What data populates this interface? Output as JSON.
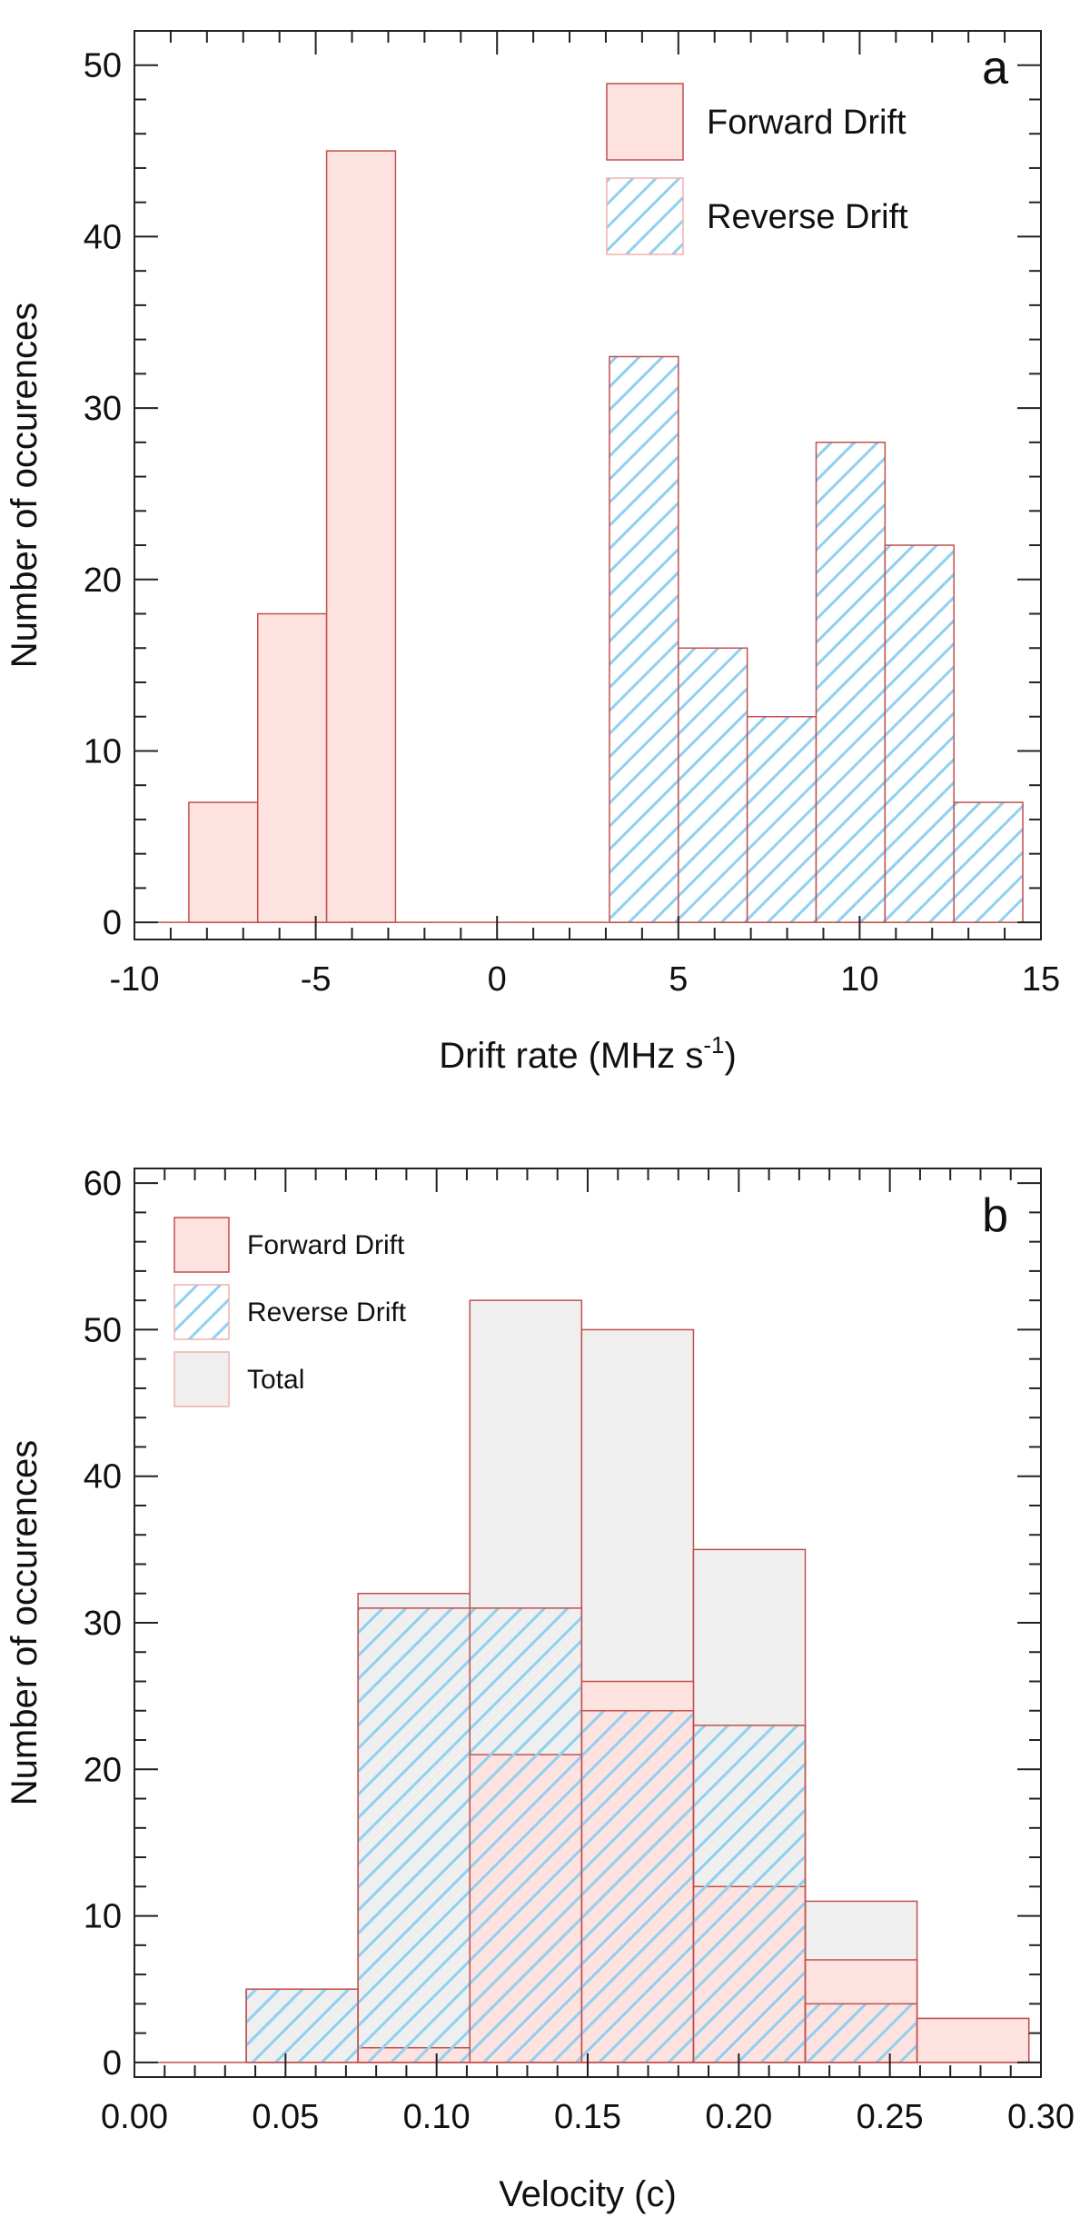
{
  "chart_data": [
    {
      "panel": "a",
      "type": "bar",
      "title": "",
      "xlabel": "Drift rate (MHz s",
      "xlabel_sup": "-1",
      "xlabel_close": ")",
      "ylabel": "Number of occurences",
      "xlim": [
        -10,
        15
      ],
      "ylim": [
        -1,
        52
      ],
      "xticks": [
        "-10",
        "-5",
        "0",
        "5",
        "10",
        "15"
      ],
      "xtick_values": [
        -10,
        -5,
        0,
        5,
        10,
        15
      ],
      "yticks": [
        "0",
        "10",
        "20",
        "30",
        "40",
        "50"
      ],
      "ytick_values": [
        0,
        10,
        20,
        30,
        40,
        50
      ],
      "colors": {
        "forward_fill": "#fde2e0",
        "forward_edge": "#c0504d",
        "reverse_stripe": "#8fd0f0",
        "total_fill": "#efefef"
      },
      "series": [
        {
          "name": "Forward Drift",
          "style": "forward",
          "bins": [
            {
              "x0": -8.5,
              "x1": -6.6,
              "value": 7
            },
            {
              "x0": -6.6,
              "x1": -4.7,
              "value": 18
            },
            {
              "x0": -4.7,
              "x1": -2.8,
              "value": 45
            }
          ]
        },
        {
          "name": "Reverse Drift",
          "style": "reverse",
          "bins": [
            {
              "x0": 3.1,
              "x1": 5.0,
              "value": 33
            },
            {
              "x0": 5.0,
              "x1": 6.9,
              "value": 16
            },
            {
              "x0": 6.9,
              "x1": 8.8,
              "value": 12
            },
            {
              "x0": 8.8,
              "x1": 10.7,
              "value": 28
            },
            {
              "x0": 10.7,
              "x1": 12.6,
              "value": 22
            },
            {
              "x0": 12.6,
              "x1": 14.5,
              "value": 7
            }
          ]
        }
      ],
      "legend": [
        {
          "label": "Forward Drift",
          "style": "forward"
        },
        {
          "label": "Reverse Drift",
          "style": "reverse"
        }
      ]
    },
    {
      "panel": "b",
      "type": "bar",
      "title": "",
      "xlabel": "Velocity (c)",
      "ylabel": "Number of occurences",
      "xlim": [
        0.0,
        0.3
      ],
      "ylim": [
        -1,
        61
      ],
      "xticks": [
        "0.00",
        "0.05",
        "0.10",
        "0.15",
        "0.20",
        "0.25",
        "0.30"
      ],
      "xtick_values": [
        0.0,
        0.05,
        0.1,
        0.15,
        0.2,
        0.25,
        0.3
      ],
      "yticks": [
        "0",
        "10",
        "20",
        "30",
        "40",
        "50",
        "60"
      ],
      "ytick_values": [
        0,
        10,
        20,
        30,
        40,
        50,
        60
      ],
      "colors": {
        "forward_fill": "#fde2e0",
        "forward_edge": "#c0504d",
        "reverse_stripe": "#8fd0f0",
        "total_fill": "#efefef"
      },
      "series": [
        {
          "name": "Total",
          "style": "total",
          "bins": [
            {
              "x0": 0.037,
              "x1": 0.074,
              "value": 5
            },
            {
              "x0": 0.074,
              "x1": 0.111,
              "value": 32
            },
            {
              "x0": 0.111,
              "x1": 0.148,
              "value": 52
            },
            {
              "x0": 0.148,
              "x1": 0.185,
              "value": 50
            },
            {
              "x0": 0.185,
              "x1": 0.222,
              "value": 35
            },
            {
              "x0": 0.222,
              "x1": 0.259,
              "value": 11
            },
            {
              "x0": 0.259,
              "x1": 0.296,
              "value": 3
            }
          ]
        },
        {
          "name": "Forward Drift",
          "style": "forward",
          "bins": [
            {
              "x0": 0.074,
              "x1": 0.111,
              "value": 1
            },
            {
              "x0": 0.111,
              "x1": 0.148,
              "value": 21
            },
            {
              "x0": 0.148,
              "x1": 0.185,
              "value": 26
            },
            {
              "x0": 0.185,
              "x1": 0.222,
              "value": 12
            },
            {
              "x0": 0.222,
              "x1": 0.259,
              "value": 7
            },
            {
              "x0": 0.259,
              "x1": 0.296,
              "value": 3
            }
          ]
        },
        {
          "name": "Reverse Drift",
          "style": "reverse",
          "bins": [
            {
              "x0": 0.037,
              "x1": 0.074,
              "value": 5
            },
            {
              "x0": 0.074,
              "x1": 0.111,
              "value": 31
            },
            {
              "x0": 0.111,
              "x1": 0.148,
              "value": 31
            },
            {
              "x0": 0.148,
              "x1": 0.185,
              "value": 24
            },
            {
              "x0": 0.185,
              "x1": 0.222,
              "value": 23
            },
            {
              "x0": 0.222,
              "x1": 0.259,
              "value": 4
            }
          ]
        }
      ],
      "legend": [
        {
          "label": "Forward Drift",
          "style": "forward"
        },
        {
          "label": "Reverse Drift",
          "style": "reverse"
        },
        {
          "label": "Total",
          "style": "total"
        }
      ]
    }
  ]
}
